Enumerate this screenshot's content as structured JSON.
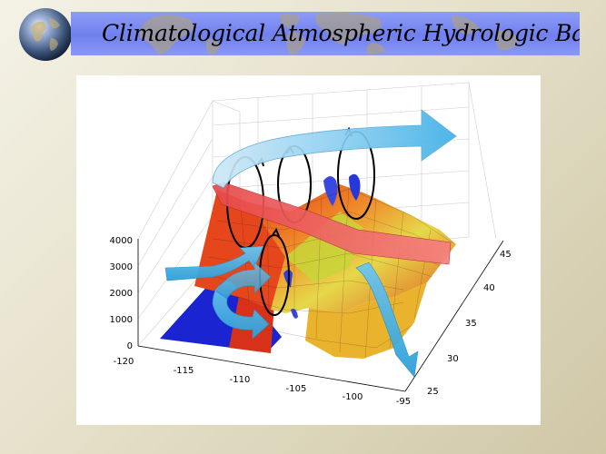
{
  "slide": {
    "title": "Climatological Atmospheric Hydrologic Balance"
  },
  "colors": {
    "title_band": "#7a8af2",
    "background": "#e6e1cb",
    "arrow_blue": "#4fb8e8",
    "band_red": "#f05a5a",
    "terrain_low": "#1e2bd6",
    "terrain_high": "#e84a1a"
  },
  "icons": [
    "globe-icon",
    "world-map-watermark"
  ],
  "figure": {
    "z_ticks": [
      "4000",
      "3000",
      "2000",
      "1000",
      "0"
    ],
    "x_ticks": [
      "-120",
      "-115",
      "-110",
      "-105",
      "-100",
      "-95"
    ],
    "y_ticks": [
      "25",
      "30",
      "35",
      "40",
      "45"
    ]
  }
}
